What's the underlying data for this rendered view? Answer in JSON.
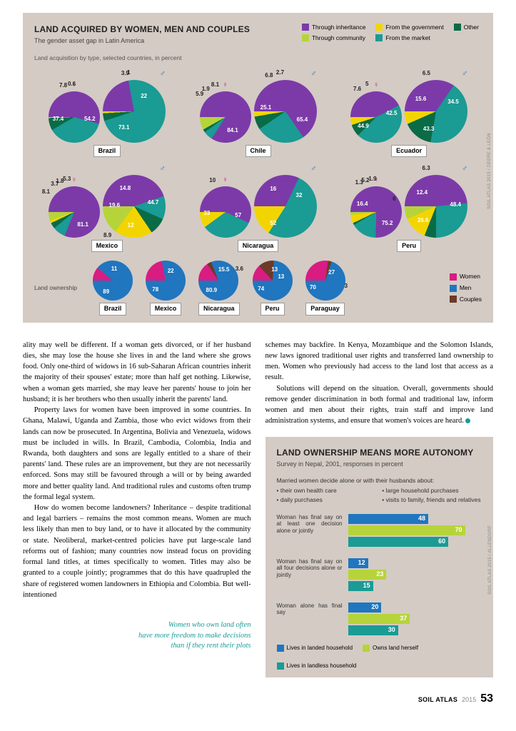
{
  "colors": {
    "inherit": "#7c3aa8",
    "community": "#b6d43a",
    "government": "#f2d500",
    "market": "#1a9b94",
    "other": "#0a6b47",
    "women": "#d91c82",
    "men": "#2076bf",
    "couples": "#6b3a2a",
    "bg": "#d4cbc4",
    "bar1": "#2076bf",
    "bar2": "#b6d43a",
    "bar3": "#1a9b94"
  },
  "panel1": {
    "title": "LAND ACQUIRED BY WOMEN, MEN AND COUPLES",
    "sub": "The gender asset gap in Latin America",
    "axis": "Land acquisition by type, selected countries, in percent",
    "source": "SOIL ATLAS 2015 / DEERE & LEÓN",
    "legend": [
      "Through inheritance",
      "Through community",
      "From the government",
      "From the market",
      "Other"
    ],
    "countries": [
      {
        "name": "Brazil",
        "f": {
          "inherit": 54.2,
          "market": 37.4,
          "other": 7.8,
          "community": 0.6
        },
        "m": {
          "inherit": 22,
          "market": 73.1,
          "other": 3.9,
          "government": 1
        }
      },
      {
        "name": "Chile",
        "f": {
          "inherit": 84.1,
          "market": 5.9,
          "other": 1.9,
          "community": 8.1
        },
        "m": {
          "inherit": 65.4,
          "market": 25.1,
          "other": 6.8,
          "government": 2.7
        }
      },
      {
        "name": "Ecuador",
        "f": {
          "inherit": 42.5,
          "market": 44.9,
          "other": 7.6,
          "government": 5
        },
        "m": {
          "inherit": 34.5,
          "market": 43.3,
          "other": 15.6,
          "government": 6.5
        }
      },
      {
        "name": "Mexico",
        "f": {
          "inherit": 81.1,
          "market": 8.1,
          "other": 3.7,
          "government": 1.8,
          "community": 5.3
        },
        "m": {
          "inherit": 44.7,
          "market": 12,
          "other": 8.9,
          "government": 19.6,
          "community": 14.8
        }
      },
      {
        "name": "Nicaragua",
        "f": {
          "inherit": 57,
          "market": 33,
          "government": 10
        },
        "m": {
          "inherit": 32,
          "market": 52,
          "government": 16
        }
      },
      {
        "name": "Peru",
        "f": {
          "inherit": 75.2,
          "market": 16.4,
          "other": 1.3,
          "government": 5.2,
          "community": 1.9
        },
        "m": {
          "inherit": 48.4,
          "market": 26.6,
          "other": 6,
          "government": 12.4,
          "community": 6.3
        }
      }
    ],
    "ownership": {
      "label": "Land ownership",
      "legend": [
        "Women",
        "Men",
        "Couples"
      ],
      "countries": [
        {
          "name": "Brazil",
          "women": 11,
          "men": 89
        },
        {
          "name": "Mexico",
          "women": 22,
          "men": 78
        },
        {
          "name": "Nicaragua",
          "women": 15.5,
          "men": 80.9,
          "couples": 3.6
        },
        {
          "name": "Peru",
          "women": 13,
          "men": 74,
          "couples": 13
        },
        {
          "name": "Paraguay",
          "women": 27,
          "men": 70,
          "couples": 3
        }
      ]
    }
  },
  "body": {
    "col1": [
      "ality may well be different. If a woman gets divorced, or if her husband dies, she may lose the house she lives in and the land where she grows food. Only one-third of widows in 16 sub-Saharan African countries inherit the majority of their spouses' estate; more than half get nothing. Likewise, when a woman gets married, she may leave her parents' house to join her husband; it is her brothers who then usually inherit the parents' land.",
      "Property laws for women have been improved in some countries. In Ghana, Malawi, Uganda and Zambia, those who evict widows from their lands can now be prosecuted. In Argentina, Bolivia and Venezuela, widows must be included in wills. In Brazil, Cambodia, Colombia, India and Rwanda, both daughters and sons are legally entitled to a share of their parents' land. These rules are an improvement, but they are not necessarily enforced. Sons may still be favoured through a will or by being awarded more and better quality land. And traditional rules and customs often trump the formal legal system.",
      "How do women become landowners? Inheritance – despite traditional and legal barriers – remains the most common means. Women are much less likely than men to buy land, or to have it allocated by the community or state. Neoliberal, market-centred policies have put large-scale land reforms out of fashion; many countries now instead focus on providing formal land titles, at times specifically to women. Titles may also be granted to a couple jointly; programmes that do this have quadrupled the share of registered women landowners in Ethiopia and Colombia. But well-intentioned"
    ],
    "quote": "Women who own land often\nhave more freedom to make decisions\nthan if they rent their plots",
    "col2": [
      "schemes may backfire. In Kenya, Mozambique and the Solomon Islands, new laws ignored traditional user rights and transferred land ownership to men. Women who previously had access to the land lost that access as a result.",
      "Solutions will depend on the situation. Overall, governments should remove gender discrimination in both formal and traditional law, inform women and men about their rights, train staff and improve land administration systems, and ensure that women's voices are heard."
    ]
  },
  "panel2": {
    "title": "LAND OWNERSHIP MEANS MORE AUTONOMY",
    "sub": "Survey in Nepal, 2001, responses in percent",
    "intro": "Married women decide alone or with their husbands about:",
    "bullets": [
      "• their own health care",
      "• large household purchases",
      "• daily purchases",
      "• visits to family, friends and relatives"
    ],
    "groups": [
      {
        "label": "Woman has final say on at least one decision alone or jointly",
        "vals": [
          48,
          70,
          60
        ]
      },
      {
        "label": "Woman has final say on all four decisions alone or jointly",
        "vals": [
          12,
          23,
          15
        ]
      },
      {
        "label": "Woman alone has final say",
        "vals": [
          20,
          37,
          30
        ]
      }
    ],
    "legend": [
      "Lives in landed household",
      "Owns land herself",
      "Lives in landless household"
    ],
    "source": "SOIL ATLAS 2015 / ALLENDORF",
    "max": 80
  },
  "footer": {
    "title": "SOIL ATLAS",
    "year": "2015",
    "page": "53"
  }
}
